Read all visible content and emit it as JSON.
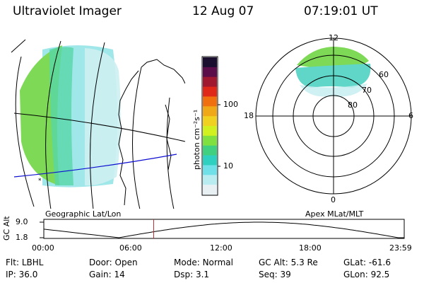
{
  "header": {
    "instrument": "Ultraviolet Imager",
    "date": "12 Aug 07",
    "time": "07:19:01 UT"
  },
  "colorbar": {
    "unit_label": "photon cm⁻²s⁻¹",
    "ticks": [
      "100",
      "10"
    ],
    "colors": [
      "#1a0f2e",
      "#5a0d48",
      "#a01830",
      "#e0281a",
      "#f07010",
      "#f0a818",
      "#f0d020",
      "#d0f020",
      "#80e040",
      "#40d080",
      "#30d0c0",
      "#70e0e8",
      "#b8ecf0",
      "#e8f0f4"
    ]
  },
  "left_panel": {
    "caption": "Geographic Lat/Lon"
  },
  "polar_plot": {
    "caption": "Apex MLat/MLT",
    "mlt_labels": {
      "top": "12",
      "right": "6",
      "bottom": "0",
      "left": "18"
    },
    "lat_labels": [
      "60",
      "70",
      "80"
    ]
  },
  "altitude_plot": {
    "ylabel": "GC Alt",
    "yticks": [
      "9.0",
      "1.8"
    ],
    "xticks": [
      "00:00",
      "06:00",
      "12:00",
      "18:00",
      "23:59"
    ],
    "current_time_hours": 7.32
  },
  "info": {
    "flt": {
      "label": "Flt:",
      "value": "LBHL"
    },
    "door": {
      "label": "Door:",
      "value": "Open"
    },
    "mode": {
      "label": "Mode:",
      "value": "Normal"
    },
    "gcalt": {
      "label": "GC Alt:",
      "value": "5.3 Re"
    },
    "glat": {
      "label": "GLat:",
      "value": "-61.6"
    },
    "ip": {
      "label": "IP:",
      "value": "36.0"
    },
    "gain": {
      "label": "Gain:",
      "value": "14"
    },
    "dsp": {
      "label": "Dsp:",
      "value": "3.1"
    },
    "seq": {
      "label": "Seq:",
      "value": "39"
    },
    "glon": {
      "label": "GLon:",
      "value": "92.5"
    }
  }
}
